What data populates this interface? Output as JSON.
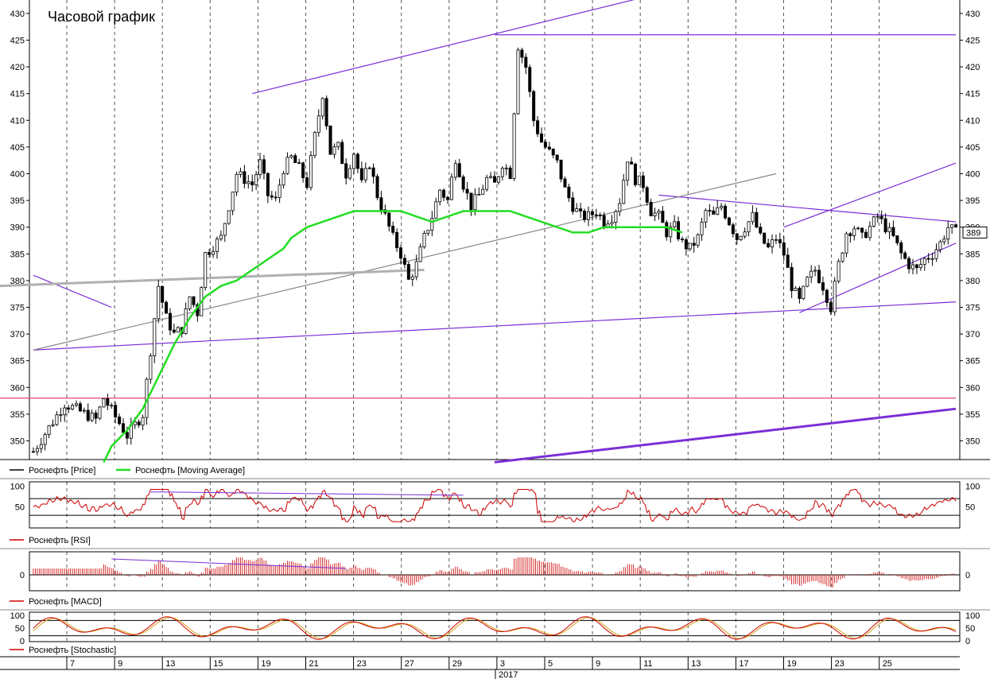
{
  "chart_data": [
    {
      "type": "candlestick",
      "title": "Часовой график",
      "ylim": [
        346,
        432
      ],
      "yticks": [
        350,
        355,
        360,
        365,
        370,
        375,
        380,
        385,
        390,
        395,
        400,
        405,
        410,
        415,
        420,
        425,
        430
      ],
      "current_price": "389",
      "series": [
        {
          "name": "Роснефть [Price]",
          "color": "#000000"
        },
        {
          "name": "Роснефть [Moving Average]",
          "color": "#22dd22"
        }
      ],
      "price_path": [
        [
          0,
          348
        ],
        [
          8,
          357
        ],
        [
          16,
          354
        ],
        [
          18,
          358
        ],
        [
          24,
          351
        ],
        [
          28,
          355
        ],
        [
          30,
          367
        ],
        [
          32,
          379
        ],
        [
          34,
          373
        ],
        [
          36,
          370
        ],
        [
          38,
          371
        ],
        [
          40,
          377
        ],
        [
          42,
          374
        ],
        [
          44,
          385
        ],
        [
          48,
          388
        ],
        [
          52,
          400
        ],
        [
          56,
          398
        ],
        [
          58,
          402
        ],
        [
          60,
          396
        ],
        [
          62,
          395
        ],
        [
          64,
          401
        ],
        [
          66,
          403
        ],
        [
          68,
          401
        ],
        [
          70,
          398
        ],
        [
          72,
          407
        ],
        [
          74,
          415
        ],
        [
          76,
          404
        ],
        [
          78,
          405
        ],
        [
          80,
          400
        ],
        [
          82,
          404
        ],
        [
          84,
          398
        ],
        [
          86,
          402
        ],
        [
          88,
          396
        ],
        [
          90,
          392
        ],
        [
          92,
          388
        ],
        [
          94,
          385
        ],
        [
          96,
          380
        ],
        [
          98,
          383
        ],
        [
          100,
          388
        ],
        [
          102,
          392
        ],
        [
          104,
          397
        ],
        [
          106,
          395
        ],
        [
          108,
          403
        ],
        [
          110,
          398
        ],
        [
          112,
          394
        ],
        [
          114,
          396
        ],
        [
          116,
          399
        ],
        [
          118,
          398
        ],
        [
          120,
          402
        ],
        [
          122,
          400
        ],
        [
          124,
          424
        ],
        [
          126,
          420
        ],
        [
          128,
          410
        ],
        [
          130,
          406
        ],
        [
          132,
          404
        ],
        [
          134,
          402
        ],
        [
          136,
          397
        ],
        [
          138,
          394
        ],
        [
          140,
          392
        ],
        [
          142,
          392
        ],
        [
          144,
          393
        ],
        [
          146,
          391
        ],
        [
          148,
          392
        ],
        [
          150,
          395
        ],
        [
          152,
          403
        ],
        [
          154,
          399
        ],
        [
          156,
          398
        ],
        [
          158,
          393
        ],
        [
          160,
          392
        ],
        [
          162,
          389
        ],
        [
          164,
          390
        ],
        [
          166,
          387
        ],
        [
          168,
          386
        ],
        [
          170,
          388
        ],
        [
          172,
          393
        ],
        [
          174,
          392
        ],
        [
          176,
          394
        ],
        [
          178,
          391
        ],
        [
          180,
          388
        ],
        [
          182,
          390
        ],
        [
          184,
          392
        ],
        [
          186,
          388
        ],
        [
          188,
          386
        ],
        [
          190,
          388
        ],
        [
          192,
          385
        ],
        [
          194,
          379
        ],
        [
          196,
          376
        ],
        [
          198,
          380
        ],
        [
          200,
          382
        ],
        [
          202,
          379
        ],
        [
          204,
          375
        ],
        [
          206,
          383
        ],
        [
          208,
          389
        ],
        [
          210,
          390
        ],
        [
          212,
          388
        ],
        [
          214,
          390
        ],
        [
          216,
          392
        ],
        [
          218,
          390
        ],
        [
          220,
          388
        ],
        [
          222,
          385
        ],
        [
          224,
          383
        ],
        [
          226,
          382
        ],
        [
          228,
          384
        ],
        [
          230,
          385
        ],
        [
          232,
          387
        ],
        [
          234,
          390
        ],
        [
          236,
          389
        ]
      ],
      "ma_path": [
        [
          18,
          346
        ],
        [
          20,
          349
        ],
        [
          24,
          352
        ],
        [
          28,
          356
        ],
        [
          32,
          362
        ],
        [
          36,
          368
        ],
        [
          40,
          373
        ],
        [
          44,
          377
        ],
        [
          48,
          379
        ],
        [
          52,
          380
        ],
        [
          56,
          382
        ],
        [
          60,
          384
        ],
        [
          64,
          386
        ],
        [
          66,
          388
        ],
        [
          70,
          390
        ],
        [
          74,
          391
        ],
        [
          78,
          392
        ],
        [
          82,
          393
        ],
        [
          86,
          393
        ],
        [
          90,
          393
        ],
        [
          94,
          393
        ],
        [
          98,
          392
        ],
        [
          102,
          391
        ],
        [
          106,
          392
        ],
        [
          110,
          393
        ],
        [
          114,
          393
        ],
        [
          118,
          393
        ],
        [
          122,
          393
        ],
        [
          126,
          392
        ],
        [
          130,
          391
        ],
        [
          134,
          390
        ],
        [
          138,
          389
        ],
        [
          142,
          389
        ],
        [
          146,
          390
        ],
        [
          150,
          390
        ],
        [
          154,
          390
        ],
        [
          158,
          390
        ],
        [
          162,
          390
        ],
        [
          166,
          389
        ]
      ],
      "trendlines": [
        {
          "color": "#7a2fd6",
          "points": [
            [
              0,
              367
            ],
            [
              236,
              376
            ]
          ]
        },
        {
          "color": "#7a2fd6",
          "points": [
            [
              56,
              415
            ],
            [
              156,
              433
            ]
          ]
        },
        {
          "color": "#7a2fd6",
          "points": [
            [
              118,
              426
            ],
            [
              236,
              426
            ]
          ]
        },
        {
          "color": "#7a2fd6",
          "points": [
            [
              0,
              381
            ],
            [
              20,
              375
            ]
          ]
        },
        {
          "color": "#7a2fd6",
          "points": [
            [
              160,
              396
            ],
            [
              236,
              391
            ]
          ]
        },
        {
          "color": "#7a2fd6",
          "points": [
            [
              192,
              390
            ],
            [
              236,
              402
            ]
          ]
        },
        {
          "color": "#7a2fd6",
          "points": [
            [
              196,
              374
            ],
            [
              236,
              387
            ]
          ]
        },
        {
          "color": "#7a2fd6",
          "points": [
            [
              118,
              346
            ],
            [
              236,
              356
            ]
          ]
        },
        {
          "color": "#e0407a",
          "points": [
            [
              -20,
              358
            ],
            [
              236,
              358
            ]
          ]
        },
        {
          "color": "#888888",
          "points": [
            [
              0,
              367
            ],
            [
              190,
              400
            ]
          ]
        },
        {
          "color": "#b0b0b0",
          "points": [
            [
              -20,
              379
            ],
            [
              100,
              382
            ]
          ]
        }
      ]
    },
    {
      "type": "line",
      "series": [
        {
          "name": "Роснефть [RSI]",
          "color": "#cc0000"
        }
      ],
      "ylim": [
        0,
        100
      ],
      "yticks": [
        50,
        100
      ],
      "levels": [
        70,
        30
      ]
    },
    {
      "type": "bar",
      "series": [
        {
          "name": "Роснефть [MACD]",
          "color": "#cc0000"
        }
      ],
      "yticks": [
        0
      ]
    },
    {
      "type": "line",
      "series": [
        {
          "name": "Роснефть [Stochastic]",
          "color": "#cc0000"
        }
      ],
      "ylim": [
        0,
        100
      ],
      "yticks": [
        0,
        50,
        100
      ],
      "levels": [
        80,
        20
      ]
    }
  ],
  "xaxis": {
    "day_labels": [
      "7",
      "9",
      "13",
      "15",
      "19",
      "21",
      "23",
      "27",
      "29",
      "3",
      "5",
      "9",
      "11",
      "13",
      "17",
      "19",
      "23",
      "25"
    ],
    "year_label": "2017"
  }
}
